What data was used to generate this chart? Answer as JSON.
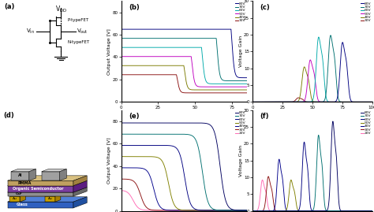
{
  "panel_b_vdd_values": [
    30,
    40,
    50,
    60,
    70,
    80
  ],
  "panel_b_colors": [
    "#8B1A1A",
    "#808000",
    "#8B008B",
    "#008B8B",
    "#008080",
    "#00008B"
  ],
  "panel_b_legend": [
    "80V",
    "70V",
    "60V",
    "50V",
    "40V",
    "30V"
  ],
  "panel_c_legend": [
    "80V",
    "70V",
    "60V",
    "50V",
    "40V",
    "30V"
  ],
  "panel_e_vdd_values": [
    20,
    30,
    40,
    50,
    60,
    70,
    80
  ],
  "panel_e_colors": [
    "#FF69B4",
    "#8B1A1A",
    "#4B0082",
    "#808000",
    "#00008B",
    "#008080",
    "#00008B"
  ],
  "panel_e_legend": [
    "80V",
    "70V",
    "60V",
    "50V",
    "40V",
    "30V",
    "20V"
  ],
  "panel_f_legend": [
    "80V",
    "70V",
    "60V",
    "50V",
    "40V",
    "30V",
    "20V"
  ]
}
